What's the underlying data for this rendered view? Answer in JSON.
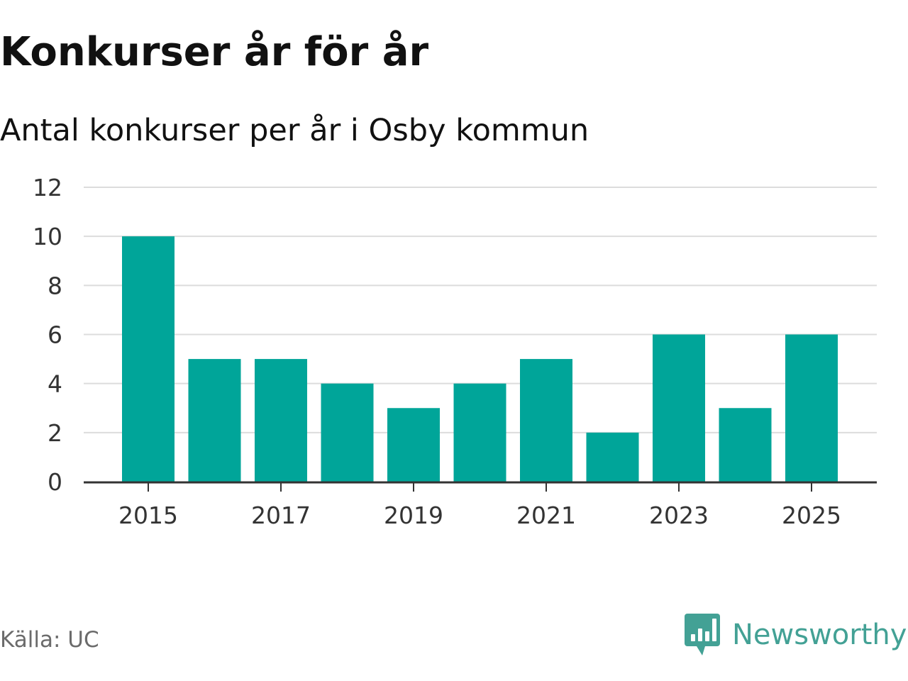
{
  "title": "Konkurser år för år",
  "subtitle": "Antal konkurser per år i Osby kommun",
  "source": "Källa: UC",
  "brand": {
    "name": "Newsworthy",
    "icon": "newsworthy-logo-icon",
    "color": "#43a195"
  },
  "colors": {
    "bar": "#00a599",
    "grid": "#dcdcdc",
    "axis": "#333333"
  },
  "chart_data": {
    "type": "bar",
    "title": "Konkurser år för år",
    "subtitle": "Antal konkurser per år i Osby kommun",
    "xlabel": "",
    "ylabel": "",
    "categories": [
      2015,
      2016,
      2017,
      2018,
      2019,
      2020,
      2021,
      2022,
      2023,
      2024,
      2025
    ],
    "values": [
      10,
      5,
      5,
      4,
      3,
      4,
      5,
      2,
      6,
      3,
      6
    ],
    "ylim": [
      0,
      12
    ],
    "yticks": [
      0,
      2,
      4,
      6,
      8,
      10,
      12
    ],
    "xtick_labels": [
      "2015",
      "2017",
      "2019",
      "2021",
      "2023",
      "2025"
    ],
    "grid": true,
    "legend": "none"
  }
}
